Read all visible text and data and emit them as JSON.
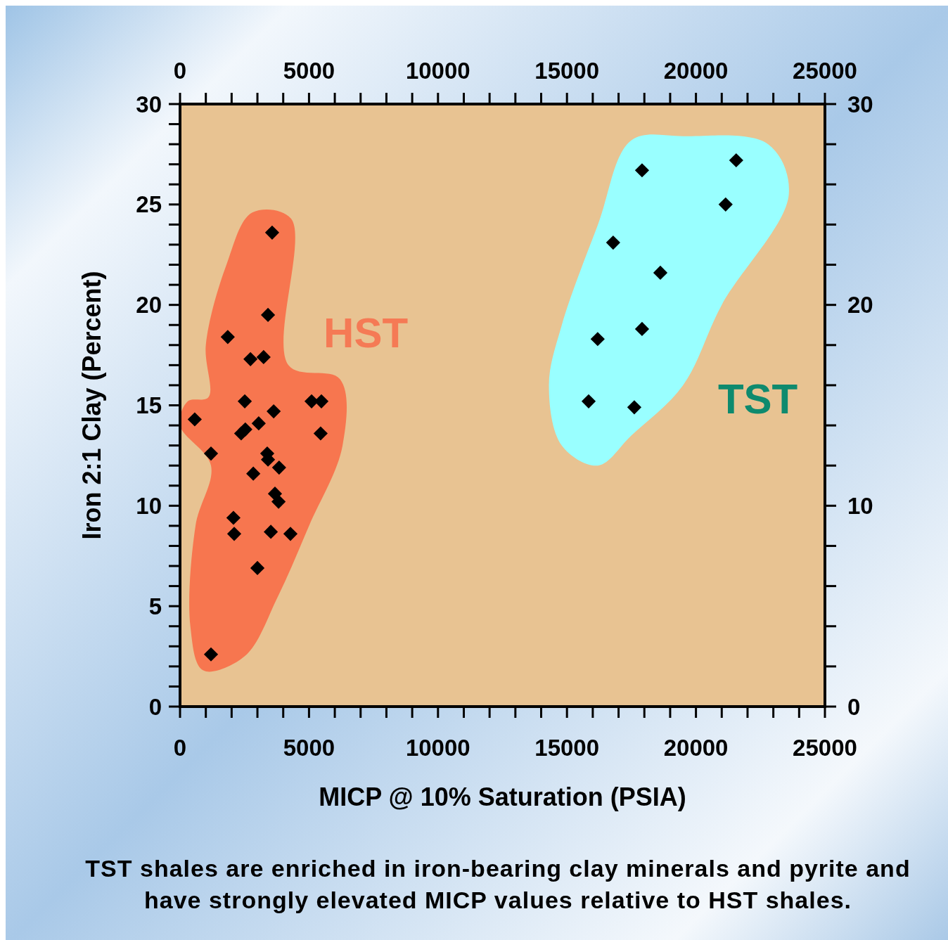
{
  "chart_data": {
    "type": "scatter",
    "xlabel": "MICP @ 10% Saturation (PSIA)",
    "ylabel": "Iron 2:1 Clay (Percent)",
    "xlim": [
      0,
      25000
    ],
    "ylim": [
      0,
      30
    ],
    "x2lim": [
      0,
      25000
    ],
    "y2lim": [
      0,
      30
    ],
    "xticks": [
      0,
      {
        "value": 1000,
        "label": null
      },
      {
        "value": 2000,
        "label": null
      },
      {
        "value": 3000,
        "label": null
      },
      {
        "value": 4000,
        "label": null
      },
      5000,
      {
        "value": 6000,
        "label": null
      },
      {
        "value": 7000,
        "label": null
      },
      {
        "value": 8000,
        "label": null
      },
      {
        "value": 9000,
        "label": null
      },
      10000,
      {
        "value": 11000,
        "label": null
      },
      {
        "value": 12000,
        "label": null
      },
      {
        "value": 13000,
        "label": null
      },
      {
        "value": 14000,
        "label": null
      },
      15000,
      {
        "value": 16000,
        "label": null
      },
      {
        "value": 17000,
        "label": null
      },
      {
        "value": 18000,
        "label": null
      },
      {
        "value": 19000,
        "label": null
      },
      20000,
      {
        "value": 21000,
        "label": null
      },
      {
        "value": 22000,
        "label": null
      },
      {
        "value": 23000,
        "label": null
      },
      {
        "value": 24000,
        "label": null
      },
      25000
    ],
    "x2ticks": [
      0,
      {
        "value": 1000,
        "label": null
      },
      {
        "value": 2000,
        "label": null
      },
      {
        "value": 3000,
        "label": null
      },
      {
        "value": 4000,
        "label": null
      },
      5000,
      {
        "value": 6000,
        "label": null
      },
      {
        "value": 7000,
        "label": null
      },
      {
        "value": 8000,
        "label": null
      },
      {
        "value": 9000,
        "label": null
      },
      10000,
      {
        "value": 11000,
        "label": null
      },
      {
        "value": 12000,
        "label": null
      },
      {
        "value": 13000,
        "label": null
      },
      {
        "value": 14000,
        "label": null
      },
      15000,
      {
        "value": 16000,
        "label": null
      },
      {
        "value": 17000,
        "label": null
      },
      {
        "value": 18000,
        "label": null
      },
      {
        "value": 19000,
        "label": null
      },
      20000,
      {
        "value": 21000,
        "label": null
      },
      {
        "value": 22000,
        "label": null
      },
      {
        "value": 23000,
        "label": null
      },
      {
        "value": 24000,
        "label": null
      },
      25000
    ],
    "yticks": [
      0,
      {
        "value": 1,
        "label": null
      },
      {
        "value": 2,
        "label": null
      },
      {
        "value": 3,
        "label": null
      },
      {
        "value": 4,
        "label": null
      },
      5,
      {
        "value": 6,
        "label": null
      },
      {
        "value": 7,
        "label": null
      },
      {
        "value": 8,
        "label": null
      },
      {
        "value": 9,
        "label": null
      },
      10,
      {
        "value": 11,
        "label": null
      },
      {
        "value": 12,
        "label": null
      },
      {
        "value": 13,
        "label": null
      },
      {
        "value": 14,
        "label": null
      },
      15,
      {
        "value": 16,
        "label": null
      },
      {
        "value": 17,
        "label": null
      },
      {
        "value": 18,
        "label": null
      },
      {
        "value": 19,
        "label": null
      },
      20,
      {
        "value": 21,
        "label": null
      },
      {
        "value": 22,
        "label": null
      },
      {
        "value": 23,
        "label": null
      },
      {
        "value": 24,
        "label": null
      },
      25,
      {
        "value": 26,
        "label": null
      },
      {
        "value": 27,
        "label": null
      },
      {
        "value": 28,
        "label": null
      },
      {
        "value": 29,
        "label": null
      },
      30
    ],
    "y2ticks": [
      0,
      {
        "value": 2,
        "label": null
      },
      {
        "value": 4,
        "label": null
      },
      {
        "value": 6,
        "label": null
      },
      {
        "value": 8,
        "label": null
      },
      10,
      {
        "value": 12,
        "label": null
      },
      {
        "value": 14,
        "label": null
      },
      {
        "value": 16,
        "label": null
      },
      {
        "value": 18,
        "label": null
      },
      20,
      {
        "value": 22,
        "label": null
      },
      {
        "value": 24,
        "label": null
      },
      {
        "value": 26,
        "label": null
      },
      {
        "value": 28,
        "label": null
      },
      30
    ],
    "marker": "diamond",
    "grid": false,
    "series": [
      {
        "color": "#000000",
        "x": [
          570,
          1200,
          1200,
          1850,
          2070,
          2100,
          2510,
          2370,
          2530,
          2730,
          2840,
          3000,
          3050,
          3240,
          3410,
          3380,
          3410,
          3520,
          3570,
          3630,
          3680,
          3820,
          3840,
          4280,
          5100,
          5480,
          5450
        ],
        "values": [
          14.3,
          12.6,
          2.6,
          18.4,
          9.4,
          8.6,
          15.2,
          13.6,
          13.8,
          17.3,
          11.6,
          6.9,
          14.1,
          17.4,
          19.5,
          12.6,
          12.3,
          8.7,
          23.6,
          14.7,
          10.6,
          10.2,
          11.9,
          8.6,
          15.2,
          15.2,
          13.6
        ]
      },
      {
        "color": "#000000",
        "x": [
          17910,
          21560,
          21150,
          16790,
          18620,
          16190,
          17910,
          15840,
          17610
        ],
        "values": [
          26.7,
          27.2,
          25.0,
          23.1,
          21.6,
          18.3,
          18.8,
          15.2,
          14.9
        ]
      }
    ],
    "annotations": [
      "HST",
      "TST",
      "TST shales are enriched in iron-bearing clay minerals and pyrite and have strongly elevated MICP values relative to HST shales."
    ]
  }
}
